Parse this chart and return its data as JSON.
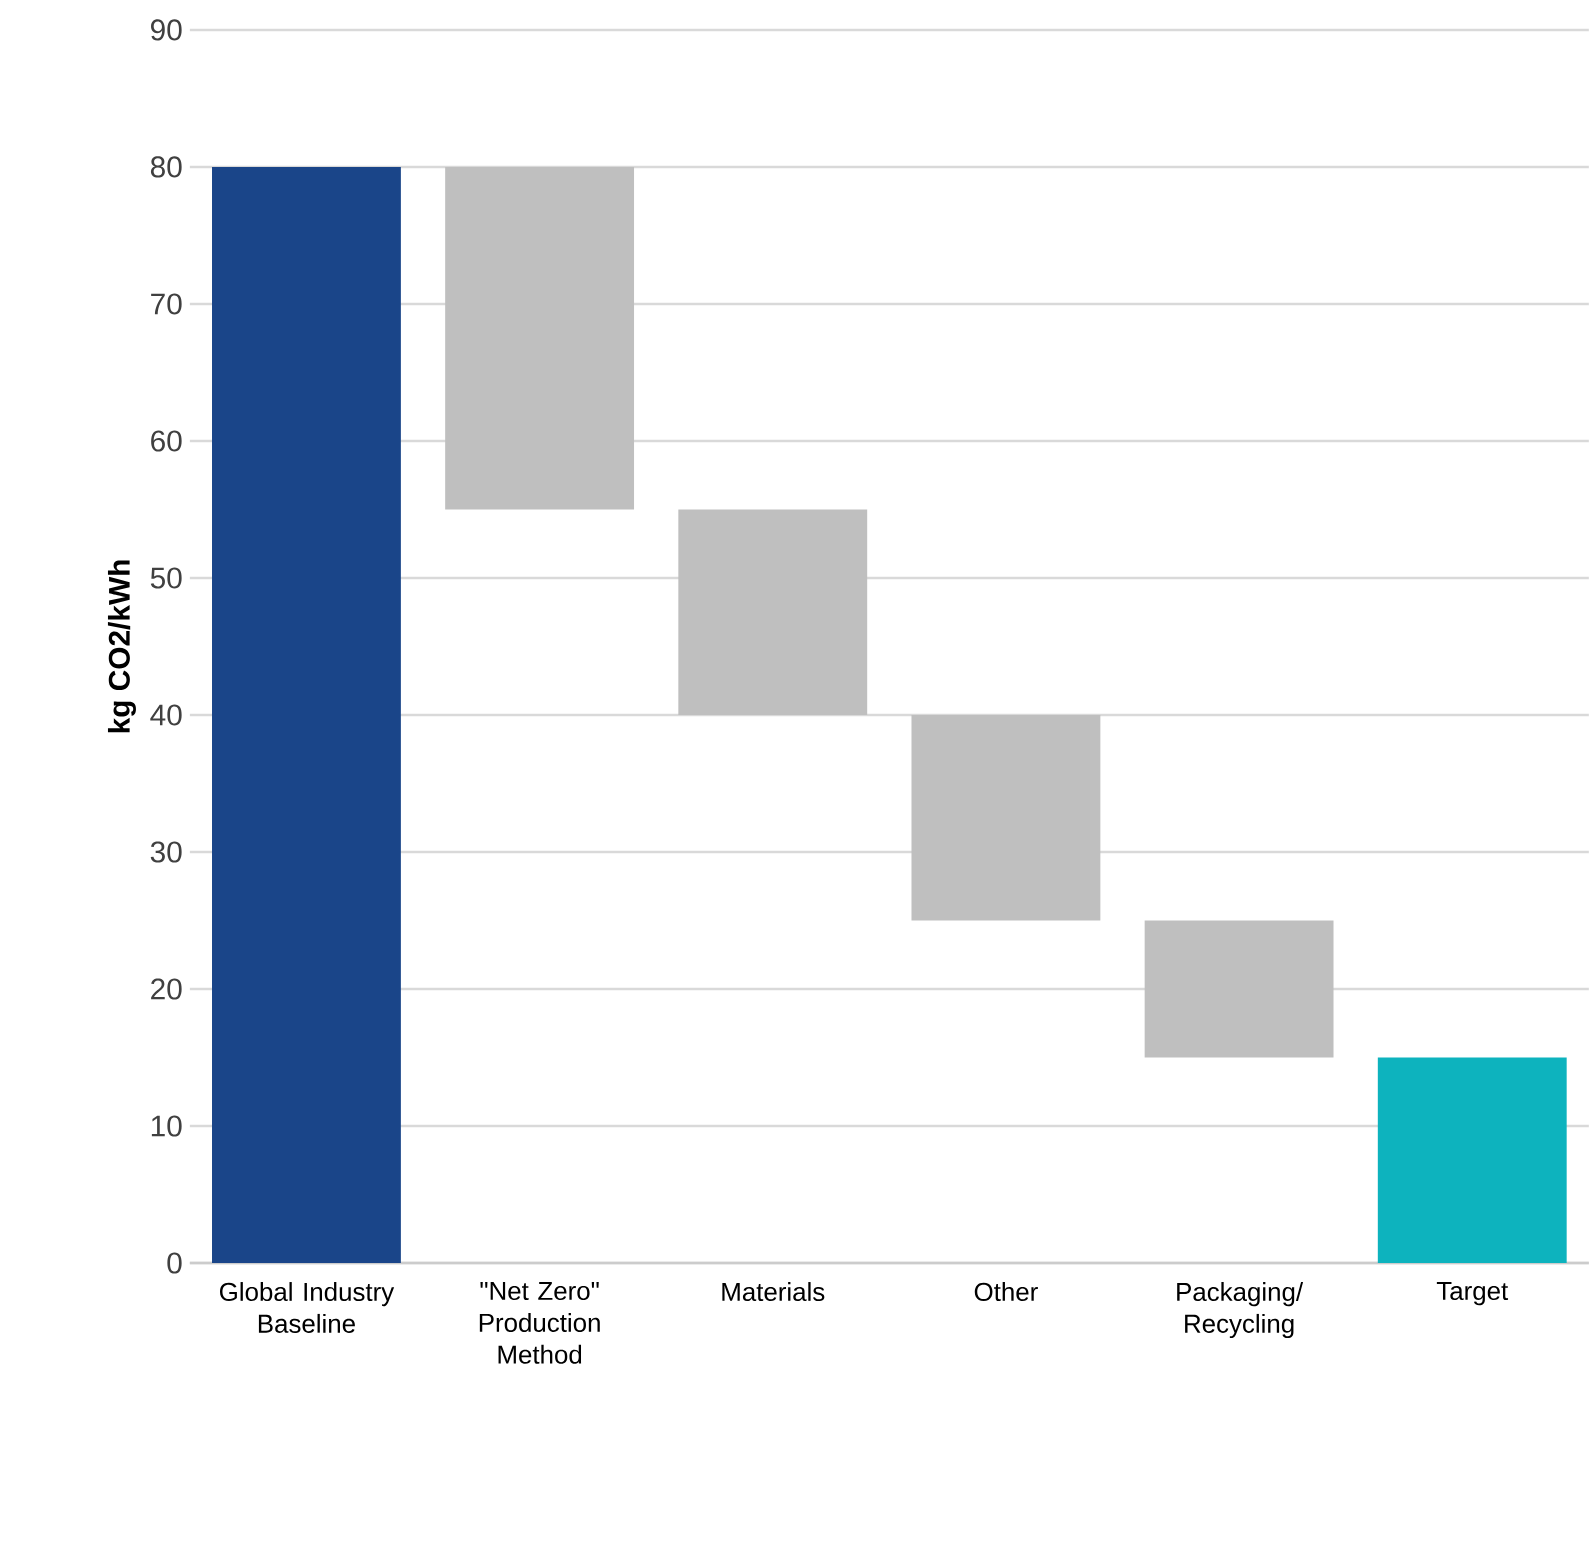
{
  "chart_data": {
    "type": "bar",
    "ylabel": "kg CO2/kWh",
    "categories": [
      "Global Industry Baseline",
      "\"Net Zero\" Production Method",
      "Materials",
      "Other",
      "Packaging/ Recycling",
      "Target"
    ],
    "values": [
      80,
      25,
      15,
      15,
      10,
      15
    ],
    "base": [
      0,
      55,
      40,
      25,
      15,
      0
    ],
    "colors": [
      "#1a4589",
      "#bfbfbf",
      "#bfbfbf",
      "#bfbfbf",
      "#bfbfbf",
      "#0db3be"
    ],
    "ylim": [
      0,
      90
    ],
    "yticks": [
      0,
      10,
      20,
      30,
      40,
      50,
      60,
      70,
      80,
      90
    ],
    "grid": "y"
  }
}
